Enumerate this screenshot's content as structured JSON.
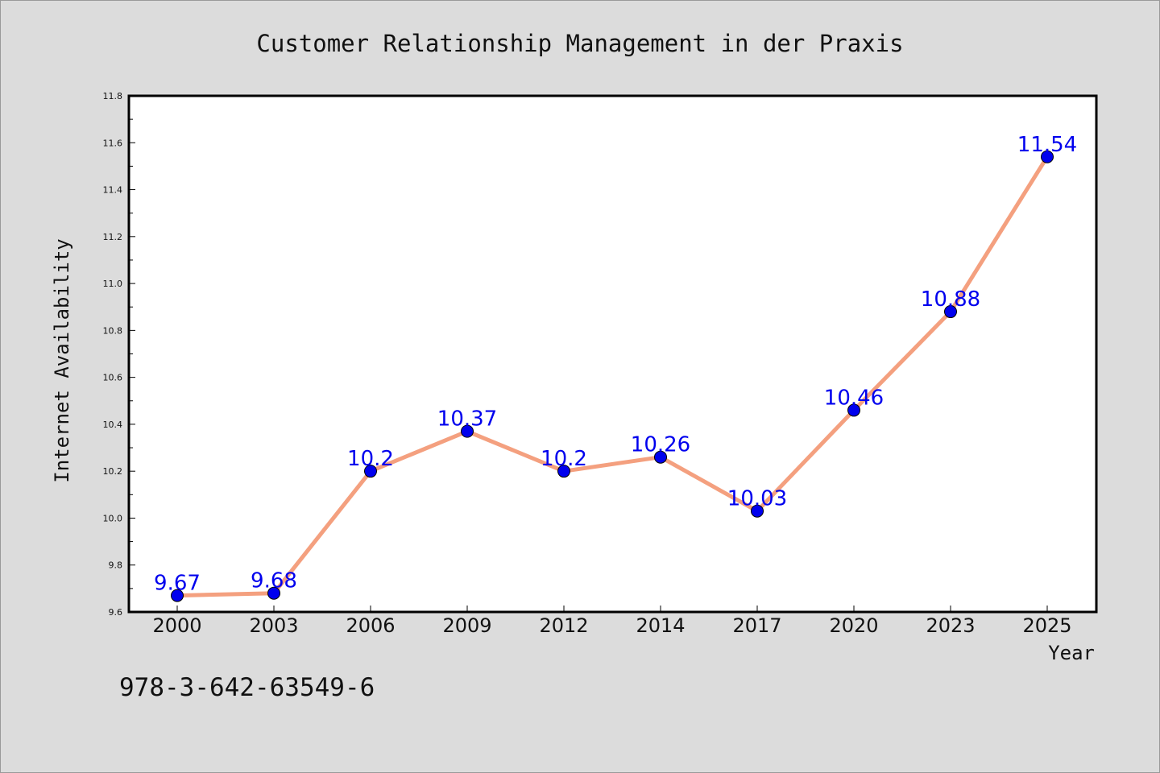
{
  "chart_data": {
    "type": "line",
    "title": "Customer Relationship Management in der Praxis",
    "xlabel": "Year",
    "ylabel": "Internet Availability",
    "categories": [
      "2000",
      "2003",
      "2006",
      "2009",
      "2012",
      "2014",
      "2017",
      "2020",
      "2023",
      "2025"
    ],
    "series": [
      {
        "values": [
          9.67,
          9.68,
          10.2,
          10.37,
          10.2,
          10.26,
          10.03,
          10.46,
          10.88,
          11.54
        ],
        "line_color": "#f4a07f",
        "marker_color": "#0000ee"
      }
    ],
    "data_labels": [
      "9.67",
      "9.68",
      "10.2",
      "10.37",
      "10.2",
      "10.26",
      "10.03",
      "10.46",
      "10.88",
      "11.54"
    ],
    "label_color": "#0000ee",
    "ylim": [
      9.6,
      11.8
    ],
    "yticks": [
      "9.6",
      "9.8",
      "10.0",
      "10.2",
      "10.4",
      "10.6",
      "10.8",
      "11.0",
      "11.2",
      "11.4",
      "11.6",
      "11.8"
    ],
    "grid": false,
    "legend": "none"
  },
  "footer": {
    "isbn": "978-3-642-63549-6"
  }
}
